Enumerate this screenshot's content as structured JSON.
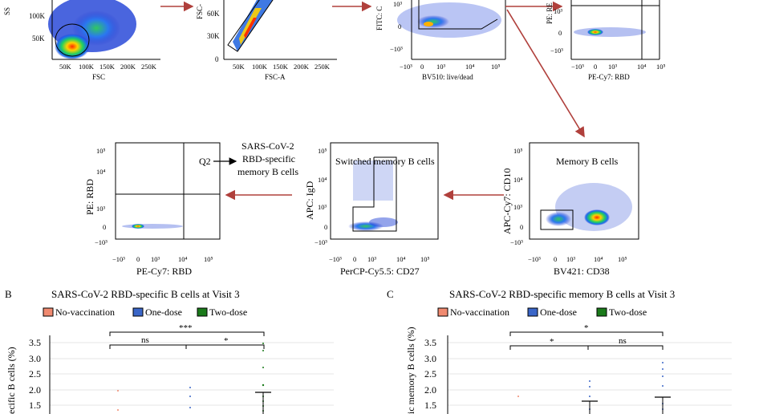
{
  "top_row": {
    "p1": {
      "xlabel": "FSC",
      "xticks": [
        "50K",
        "100K",
        "150K",
        "200K",
        "250K"
      ],
      "yticks": [
        "100K",
        "50K"
      ],
      "ylabel": "SS"
    },
    "p2": {
      "xlabel": "FSC-A",
      "xticks": [
        "50K",
        "100K",
        "150K",
        "200K",
        "250K"
      ],
      "yticks": [
        "60K",
        "30K",
        "0"
      ],
      "ylabel": "FSC-"
    },
    "p3": {
      "xlabel": "BV510: live/dead",
      "xticks": [
        "−10³",
        "0",
        "10³",
        "10⁴",
        "10⁵"
      ],
      "yticks": [
        "10³",
        "0",
        "−10³"
      ],
      "ylabel": "FITC: C"
    },
    "p4": {
      "xlabel": "PE-Cy7: RBD",
      "xticks": [
        "−10³",
        "0",
        "10³",
        "10⁴",
        "10⁵"
      ],
      "yticks": [
        "10³",
        "0",
        "−10³"
      ],
      "ylabel": "PE: RE"
    }
  },
  "middle_row": {
    "p5": {
      "xlabel": "PE-Cy7: RBD",
      "ylabel": "PE: RBD",
      "xticks": [
        "−10³",
        "0",
        "10³",
        "10⁴",
        "10⁵"
      ],
      "yticks": [
        "10⁵",
        "10⁴",
        "10³",
        "0",
        "−10³"
      ],
      "quadrant": "Q2"
    },
    "p6": {
      "xlabel": "PerCP-Cy5.5: CD27",
      "ylabel": "APC: IgD",
      "title": "Switched memory B cells",
      "xticks": [
        "−10³",
        "0",
        "10³",
        "10⁴",
        "10⁵"
      ],
      "yticks": [
        "10⁵",
        "10⁴",
        "10³",
        "0",
        "−10³"
      ]
    },
    "p7": {
      "xlabel": "BV421: CD38",
      "ylabel": "APC-Cy7: CD10",
      "title": "Memory B cells",
      "xticks": [
        "−10³",
        "0",
        "10³",
        "10⁴",
        "10⁵"
      ],
      "yticks": [
        "10⁵",
        "10⁴",
        "10³",
        "0",
        "−10³"
      ]
    },
    "annotation": [
      "SARS-CoV-2",
      "RBD-specific",
      "memory B cells"
    ]
  },
  "panel_b": {
    "letter": "B",
    "title": "SARS-CoV-2 RBD-specific B cells at Visit 3",
    "legend": [
      "No-vaccination",
      "One-dose",
      "Two-dose"
    ],
    "ylabel": "ecific B cells (%)",
    "yticks": [
      "3.5",
      "3.0",
      "2.5",
      "2.0",
      "1.5"
    ],
    "sig_outer": "***",
    "sig_left": "ns",
    "sig_right": "*"
  },
  "panel_c": {
    "letter": "C",
    "title": "SARS-CoV-2 RBD-specific memory B cells at Visit 3",
    "legend": [
      "No-vaccination",
      "One-dose",
      "Two-dose"
    ],
    "ylabel": "ic memory B cells (%)",
    "yticks": [
      "3.5",
      "3.0",
      "2.5",
      "2.0",
      "1.5"
    ],
    "sig_outer": "*",
    "sig_left": "*",
    "sig_right": "ns"
  },
  "colors": {
    "no_vacc": "#f08a70",
    "one_dose": "#3a66c8",
    "two_dose": "#1a7a1a",
    "arrow": "#b0403c"
  }
}
